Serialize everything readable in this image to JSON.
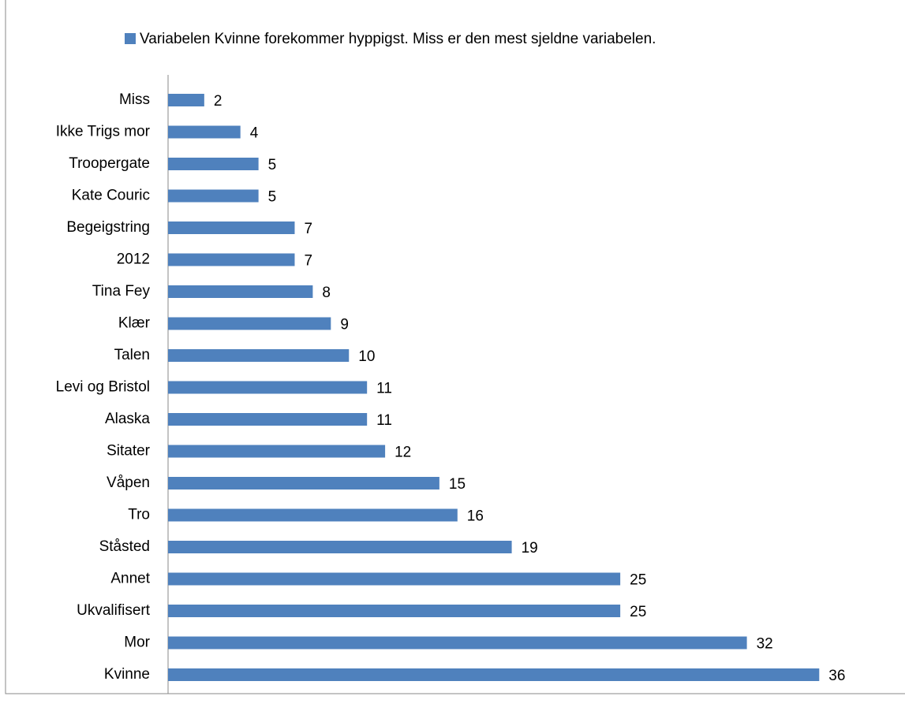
{
  "chart_data": {
    "type": "barh",
    "legend": "Variabelen Kvinne forekommer hyppigst. Miss er den mest sjeldne variabelen.",
    "color": "#4f81bd",
    "categories": [
      "Miss",
      "Ikke Trigs mor",
      "Troopergate",
      "Kate Couric",
      "Begeigstring",
      "2012",
      "Tina Fey",
      "Klær",
      "Talen",
      "Levi og Bristol",
      "Alaska",
      "Sitater",
      "Våpen",
      "Tro",
      "Ståsted",
      "Annet",
      "Ukvalifisert",
      "Mor",
      "Kvinne"
    ],
    "values": [
      2,
      4,
      5,
      5,
      7,
      7,
      8,
      9,
      10,
      11,
      11,
      12,
      15,
      16,
      19,
      25,
      25,
      32,
      36
    ],
    "xlim": [
      0,
      40
    ]
  }
}
